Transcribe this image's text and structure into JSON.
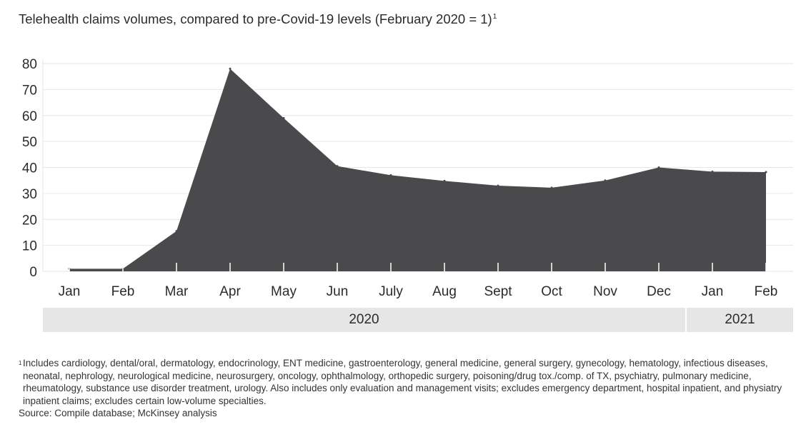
{
  "title": "Telehealth claims volumes, compared to pre-Covid-19 levels (February 2020 = 1)",
  "title_footnote_marker": "1",
  "chart_data": {
    "type": "area",
    "title": "Telehealth claims volumes, compared to pre-Covid-19 levels (February 2020 = 1)",
    "categories": [
      "Jan",
      "Feb",
      "Mar",
      "Apr",
      "May",
      "Jun",
      "July",
      "Aug",
      "Sept",
      "Oct",
      "Nov",
      "Dec",
      "Jan",
      "Feb"
    ],
    "values": [
      1,
      1,
      15.5,
      78,
      59,
      40.5,
      37,
      34.8,
      33,
      32.2,
      35,
      40,
      38.4,
      38.2
    ],
    "yticks": [
      0,
      10,
      20,
      30,
      40,
      50,
      60,
      70,
      80
    ],
    "ylim": [
      0,
      80
    ],
    "xlabel": "",
    "ylabel": "",
    "grid": true,
    "year_groups": [
      {
        "label": "2020",
        "span": 12
      },
      {
        "label": "2021",
        "span": 2
      }
    ],
    "colors": {
      "area": "#4a4a4c",
      "grid": "#e6e6e6",
      "tick": "#ffffff",
      "band": "#e6e6e6"
    }
  },
  "footnote": {
    "marker": "1",
    "text": "Includes cardiology, dental/oral, dermatology, endocrinology, ENT medicine, gastroenterology, general medicine, general surgery, gynecology, hematology, infectious diseases, neonatal, nephrology, neurological medicine, neurosurgery, oncology, ophthalmology, orthopedic surgery, poisoning/drug tox./comp. of TX, psychiatry, pulmonary medicine, rheumatology, substance use disorder treatment, urology. Also includes only evaluation and management visits; excludes emergency department, hospital inpatient, and physiatry inpatient claims; excludes certain low-volume specialties."
  },
  "source": "Source: Compile database; McKinsey analysis"
}
